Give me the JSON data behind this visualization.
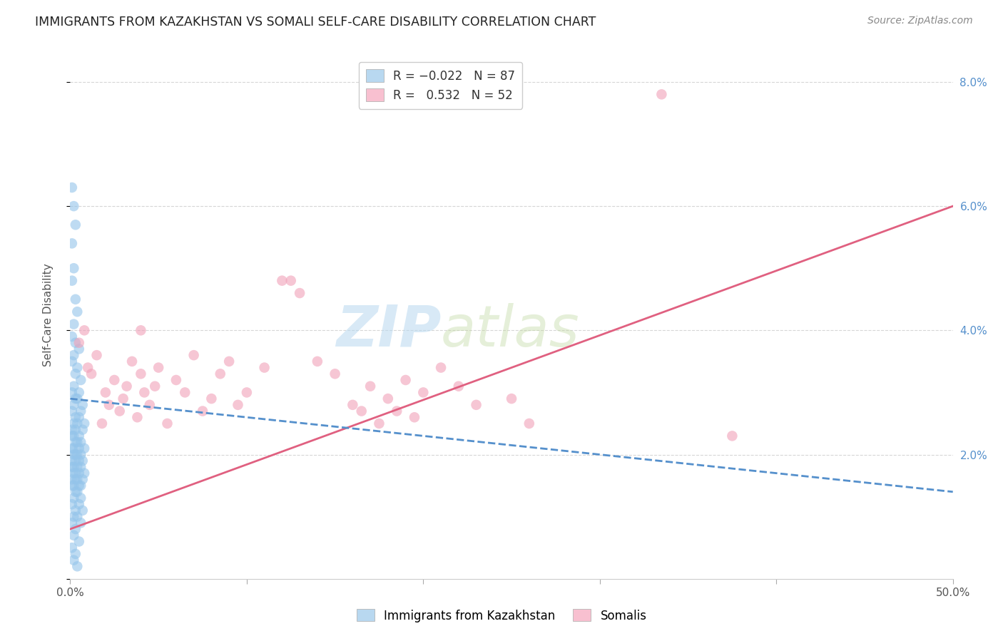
{
  "title": "IMMIGRANTS FROM KAZAKHSTAN VS SOMALI SELF-CARE DISABILITY CORRELATION CHART",
  "source": "Source: ZipAtlas.com",
  "ylabel": "Self-Care Disability",
  "x_min": 0.0,
  "x_max": 0.5,
  "y_min": 0.0,
  "y_max": 0.085,
  "y_ticks": [
    0.0,
    0.02,
    0.04,
    0.06,
    0.08
  ],
  "y_tick_labels": [
    "",
    "2.0%",
    "4.0%",
    "6.0%",
    "8.0%"
  ],
  "x_ticks": [
    0.0,
    0.1,
    0.2,
    0.3,
    0.4,
    0.5
  ],
  "x_tick_labels": [
    "0.0%",
    "",
    "",
    "",
    "",
    "50.0%"
  ],
  "watermark_1": "ZIP",
  "watermark_2": "atlas",
  "kaz_color": "#94c4ea",
  "somali_color": "#f0a0b8",
  "kaz_line_color": "#5590cc",
  "somali_line_color": "#e06080",
  "kaz_R": -0.022,
  "kaz_N": 87,
  "somali_R": 0.532,
  "somali_N": 52,
  "background_color": "#ffffff",
  "grid_color": "#cccccc",
  "legend_kaz_color": "#b8d8f0",
  "legend_somali_color": "#f8c0d0",
  "kaz_points": [
    [
      0.001,
      0.063
    ],
    [
      0.002,
      0.06
    ],
    [
      0.003,
      0.057
    ],
    [
      0.001,
      0.054
    ],
    [
      0.002,
      0.05
    ],
    [
      0.001,
      0.048
    ],
    [
      0.003,
      0.045
    ],
    [
      0.004,
      0.043
    ],
    [
      0.002,
      0.041
    ],
    [
      0.001,
      0.039
    ],
    [
      0.003,
      0.038
    ],
    [
      0.005,
      0.037
    ],
    [
      0.002,
      0.036
    ],
    [
      0.001,
      0.035
    ],
    [
      0.004,
      0.034
    ],
    [
      0.003,
      0.033
    ],
    [
      0.006,
      0.032
    ],
    [
      0.002,
      0.031
    ],
    [
      0.001,
      0.03
    ],
    [
      0.005,
      0.03
    ],
    [
      0.004,
      0.029
    ],
    [
      0.003,
      0.029
    ],
    [
      0.007,
      0.028
    ],
    [
      0.002,
      0.028
    ],
    [
      0.001,
      0.027
    ],
    [
      0.006,
      0.027
    ],
    [
      0.003,
      0.026
    ],
    [
      0.005,
      0.026
    ],
    [
      0.002,
      0.025
    ],
    [
      0.008,
      0.025
    ],
    [
      0.004,
      0.025
    ],
    [
      0.001,
      0.024
    ],
    [
      0.003,
      0.024
    ],
    [
      0.007,
      0.024
    ],
    [
      0.002,
      0.023
    ],
    [
      0.005,
      0.023
    ],
    [
      0.001,
      0.023
    ],
    [
      0.004,
      0.022
    ],
    [
      0.006,
      0.022
    ],
    [
      0.003,
      0.022
    ],
    [
      0.002,
      0.021
    ],
    [
      0.001,
      0.021
    ],
    [
      0.005,
      0.021
    ],
    [
      0.008,
      0.021
    ],
    [
      0.003,
      0.02
    ],
    [
      0.002,
      0.02
    ],
    [
      0.006,
      0.02
    ],
    [
      0.004,
      0.02
    ],
    [
      0.001,
      0.019
    ],
    [
      0.007,
      0.019
    ],
    [
      0.003,
      0.019
    ],
    [
      0.005,
      0.019
    ],
    [
      0.002,
      0.018
    ],
    [
      0.001,
      0.018
    ],
    [
      0.004,
      0.018
    ],
    [
      0.006,
      0.018
    ],
    [
      0.003,
      0.017
    ],
    [
      0.002,
      0.017
    ],
    [
      0.008,
      0.017
    ],
    [
      0.005,
      0.017
    ],
    [
      0.001,
      0.016
    ],
    [
      0.004,
      0.016
    ],
    [
      0.003,
      0.016
    ],
    [
      0.007,
      0.016
    ],
    [
      0.002,
      0.015
    ],
    [
      0.006,
      0.015
    ],
    [
      0.001,
      0.015
    ],
    [
      0.005,
      0.015
    ],
    [
      0.003,
      0.014
    ],
    [
      0.004,
      0.014
    ],
    [
      0.002,
      0.013
    ],
    [
      0.006,
      0.013
    ],
    [
      0.001,
      0.012
    ],
    [
      0.005,
      0.012
    ],
    [
      0.003,
      0.011
    ],
    [
      0.007,
      0.011
    ],
    [
      0.002,
      0.01
    ],
    [
      0.004,
      0.01
    ],
    [
      0.001,
      0.009
    ],
    [
      0.006,
      0.009
    ],
    [
      0.003,
      0.008
    ],
    [
      0.002,
      0.007
    ],
    [
      0.005,
      0.006
    ],
    [
      0.001,
      0.005
    ],
    [
      0.003,
      0.004
    ],
    [
      0.002,
      0.003
    ],
    [
      0.004,
      0.002
    ]
  ],
  "somali_points": [
    [
      0.005,
      0.038
    ],
    [
      0.008,
      0.04
    ],
    [
      0.01,
      0.034
    ],
    [
      0.012,
      0.033
    ],
    [
      0.015,
      0.036
    ],
    [
      0.018,
      0.025
    ],
    [
      0.02,
      0.03
    ],
    [
      0.022,
      0.028
    ],
    [
      0.025,
      0.032
    ],
    [
      0.028,
      0.027
    ],
    [
      0.03,
      0.029
    ],
    [
      0.032,
      0.031
    ],
    [
      0.035,
      0.035
    ],
    [
      0.038,
      0.026
    ],
    [
      0.04,
      0.033
    ],
    [
      0.042,
      0.03
    ],
    [
      0.045,
      0.028
    ],
    [
      0.048,
      0.031
    ],
    [
      0.05,
      0.034
    ],
    [
      0.055,
      0.025
    ],
    [
      0.06,
      0.032
    ],
    [
      0.065,
      0.03
    ],
    [
      0.07,
      0.036
    ],
    [
      0.075,
      0.027
    ],
    [
      0.08,
      0.029
    ],
    [
      0.085,
      0.033
    ],
    [
      0.09,
      0.035
    ],
    [
      0.095,
      0.028
    ],
    [
      0.1,
      0.03
    ],
    [
      0.11,
      0.034
    ],
    [
      0.12,
      0.048
    ],
    [
      0.125,
      0.048
    ],
    [
      0.13,
      0.046
    ],
    [
      0.14,
      0.035
    ],
    [
      0.15,
      0.033
    ],
    [
      0.16,
      0.028
    ],
    [
      0.165,
      0.027
    ],
    [
      0.17,
      0.031
    ],
    [
      0.175,
      0.025
    ],
    [
      0.18,
      0.029
    ],
    [
      0.185,
      0.027
    ],
    [
      0.19,
      0.032
    ],
    [
      0.195,
      0.026
    ],
    [
      0.2,
      0.03
    ],
    [
      0.21,
      0.034
    ],
    [
      0.22,
      0.031
    ],
    [
      0.23,
      0.028
    ],
    [
      0.25,
      0.029
    ],
    [
      0.26,
      0.025
    ],
    [
      0.375,
      0.023
    ],
    [
      0.335,
      0.078
    ],
    [
      0.04,
      0.04
    ]
  ]
}
